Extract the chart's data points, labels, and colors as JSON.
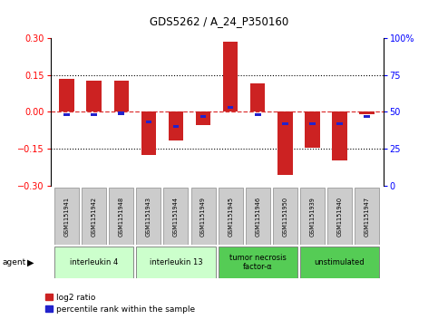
{
  "title": "GDS5262 / A_24_P350160",
  "samples": [
    "GSM1151941",
    "GSM1151942",
    "GSM1151948",
    "GSM1151943",
    "GSM1151944",
    "GSM1151949",
    "GSM1151945",
    "GSM1151946",
    "GSM1151950",
    "GSM1151939",
    "GSM1151940",
    "GSM1151947"
  ],
  "log2_ratio": [
    0.135,
    0.125,
    0.125,
    -0.175,
    -0.115,
    -0.055,
    0.285,
    0.115,
    -0.255,
    -0.145,
    -0.195,
    -0.01
  ],
  "percentile_rank": [
    48,
    48,
    49,
    43,
    40,
    47,
    53,
    48,
    42,
    42,
    42,
    47
  ],
  "agent_groups": [
    {
      "label": "interleukin 4",
      "start": 0,
      "end": 2,
      "color": "#ccffcc"
    },
    {
      "label": "interleukin 13",
      "start": 3,
      "end": 5,
      "color": "#ccffcc"
    },
    {
      "label": "tumor necrosis\nfactor-α",
      "start": 6,
      "end": 8,
      "color": "#55cc55"
    },
    {
      "label": "unstimulated",
      "start": 9,
      "end": 11,
      "color": "#55cc55"
    }
  ],
  "bar_color": "#cc2222",
  "blue_color": "#2222cc",
  "dashed_line_color": "#dd3333",
  "ylim": [
    -0.3,
    0.3
  ],
  "y2lim": [
    0,
    100
  ],
  "yticks": [
    -0.3,
    -0.15,
    0,
    0.15,
    0.3
  ],
  "y2ticks": [
    0,
    25,
    50,
    75,
    100
  ],
  "dotted_lines": [
    -0.15,
    0.15
  ],
  "bar_width": 0.55,
  "blue_bar_width": 0.22,
  "blue_bar_height": 0.012,
  "sample_box_color": "#cccccc",
  "legend_items": [
    "log2 ratio",
    "percentile rank within the sample"
  ]
}
